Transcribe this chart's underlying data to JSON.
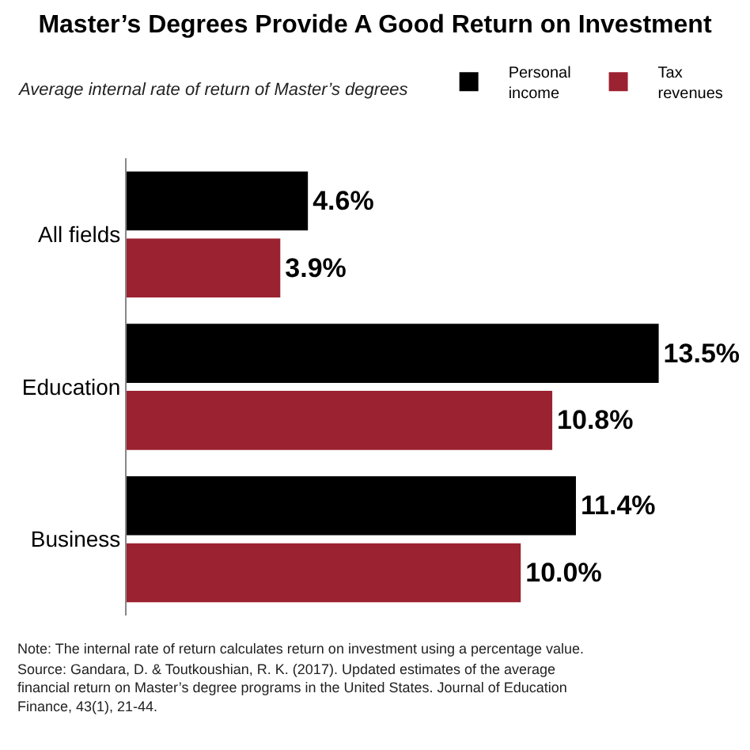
{
  "chart_data": {
    "type": "bar",
    "orientation": "horizontal",
    "title": "Master’s Degrees Provide A Good Return on Investment",
    "subtitle": "Average internal rate of return of Master’s degrees",
    "categories": [
      "All fields",
      "Education",
      "Business"
    ],
    "series": [
      {
        "name": "Personal income",
        "color": "#000000",
        "values": [
          4.6,
          13.5,
          11.4
        ],
        "value_labels": [
          "4.6%",
          "13.5%",
          "11.4%"
        ]
      },
      {
        "name": "Tax revenues",
        "color": "#9b2230",
        "values": [
          3.9,
          10.8,
          10.0
        ],
        "value_labels": [
          "3.9%",
          "10.8%",
          "10.0%"
        ]
      }
    ],
    "tick_labels": "y",
    "legend": "top right",
    "annotations": [
      "Note: The internal rate of return calculates return on investment using a percentage value.",
      "Source: Gandara, D. & Toutkoushian, R. K. (2017). Updated estimates of the average financial return on Master’s degree programs in the United States. Journal of Education Finance, 43(1), 21-44."
    ]
  }
}
